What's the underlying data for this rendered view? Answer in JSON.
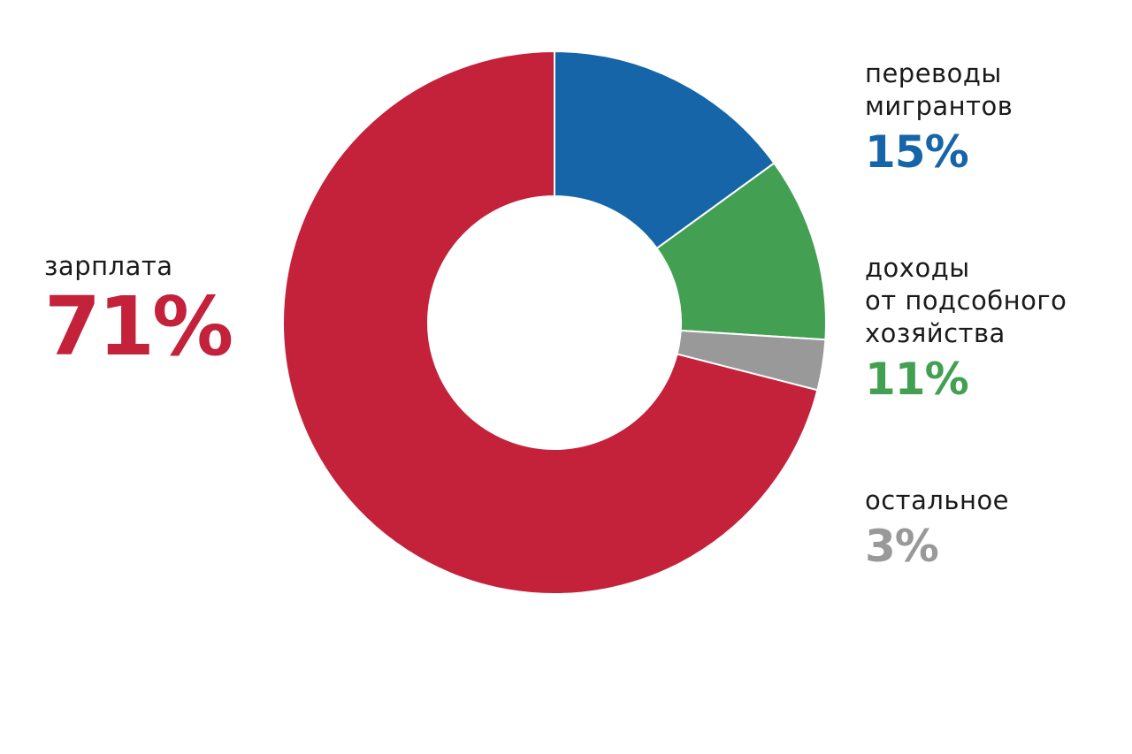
{
  "chart_data": {
    "type": "pie",
    "donut": true,
    "title": "",
    "slices": [
      {
        "key": "remit",
        "label_lines": [
          "переводы",
          "мигрантов"
        ],
        "value": 15,
        "display": "15%",
        "color": "#1565A8"
      },
      {
        "key": "farm",
        "label_lines": [
          "доходы",
          "от подсобного",
          "хозяйства"
        ],
        "value": 11,
        "display": "11%",
        "color": "#43A052"
      },
      {
        "key": "other",
        "label_lines": [
          "остальное"
        ],
        "value": 3,
        "display": "3%",
        "color": "#999999"
      },
      {
        "key": "salary",
        "label_lines": [
          "зарплата"
        ],
        "value": 71,
        "display": "71%",
        "color": "#C4213B"
      }
    ]
  }
}
